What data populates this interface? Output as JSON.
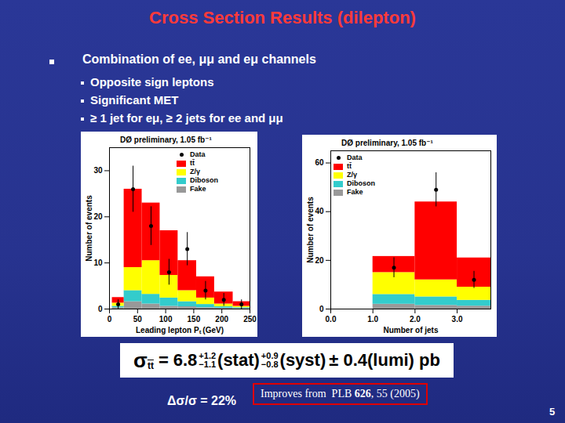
{
  "slide": {
    "title": "Cross Section Results (dilepton)",
    "bullet": "Combination of ee, μμ and eμ channels",
    "sub_bullets": [
      "Opposite sign leptons",
      "Significant MET",
      "≥ 1 jet for eμ, ≥ 2 jets for ee and μμ"
    ],
    "formula": {
      "lhs": "σ",
      "lhs_sub": "tt",
      "eq": "=",
      "value": "6.8",
      "stat_up": "+1.2",
      "stat_down": "−1.1",
      "stat": "(stat)",
      "syst_up": "+0.9",
      "syst_down": "−0.8",
      "syst": "(syst)",
      "rest": "± 0.4(lumi) pb"
    },
    "note": "Δσ/σ = 22%",
    "reference_parts": [
      "Improves from  PLB ",
      "626",
      ", 55 (2005)"
    ],
    "page_number": "5"
  },
  "chart_data": [
    {
      "type": "bar",
      "stacked": true,
      "annotation": "DØ preliminary, 1.05 fb⁻¹",
      "x_label": "Leading lepton Pₜ (GeV)",
      "y_label": "Number of events",
      "bins": [
        5,
        26,
        58,
        90,
        122,
        155,
        187,
        220,
        250
      ],
      "xlim": [
        0,
        250
      ],
      "xticks": [
        0,
        50,
        100,
        150,
        200,
        250
      ],
      "ylim": [
        0,
        35
      ],
      "yticks": [
        0,
        10,
        20,
        30
      ],
      "grid": false,
      "legend": "top-right",
      "series": [
        {
          "name": "Data",
          "type": "scatter",
          "marker": "circle",
          "color": "#000000",
          "values": [
            1,
            26,
            18,
            8,
            13,
            4,
            2,
            1
          ],
          "errors": [
            1,
            5,
            4.2,
            2.8,
            3.6,
            2,
            1.4,
            1
          ]
        },
        {
          "name": "tt̄",
          "color": "#ff0000",
          "values": [
            1.2,
            17,
            12.5,
            9.7,
            6.5,
            4.6,
            2.6,
            1.0
          ]
        },
        {
          "name": "Z/γ",
          "color": "#ffff00",
          "values": [
            0.7,
            5,
            7.3,
            4.9,
            2.4,
            1.4,
            0.6,
            0.3
          ]
        },
        {
          "name": "Diboson",
          "color": "#33cccc",
          "values": [
            0.3,
            2.4,
            2.1,
            1.8,
            1.1,
            0.7,
            0.3,
            0.2
          ]
        },
        {
          "name": "Fake",
          "color": "#999999",
          "values": [
            0.3,
            1.6,
            1.1,
            0.6,
            0.5,
            0.3,
            0.2,
            0.1
          ]
        }
      ]
    },
    {
      "type": "bar",
      "stacked": true,
      "annotation": "DØ preliminary, 1.05 fb⁻¹",
      "x_label": "Number of jets",
      "y_label": "Number of events",
      "bins": [
        1,
        2,
        3,
        3.8
      ],
      "xlim": [
        0,
        3.8
      ],
      "xticks": [
        0,
        1,
        2,
        3
      ],
      "ylim": [
        0,
        65
      ],
      "yticks": [
        0,
        20,
        40,
        60
      ],
      "grid": false,
      "legend": "top-left",
      "series": [
        {
          "name": "Data",
          "type": "scatter",
          "marker": "circle",
          "color": "#000000",
          "values": [
            17,
            49,
            12
          ],
          "errors": [
            4.1,
            7,
            3.5
          ]
        },
        {
          "name": "tt̄",
          "color": "#ff0000",
          "values": [
            6.6,
            32,
            12
          ]
        },
        {
          "name": "Z/γ",
          "color": "#ffff00",
          "values": [
            9,
            7,
            5.4
          ]
        },
        {
          "name": "Diboson",
          "color": "#33cccc",
          "values": [
            4,
            3.5,
            2.4
          ]
        },
        {
          "name": "Fake",
          "color": "#999999",
          "values": [
            2,
            1.5,
            1.2
          ]
        }
      ]
    }
  ]
}
